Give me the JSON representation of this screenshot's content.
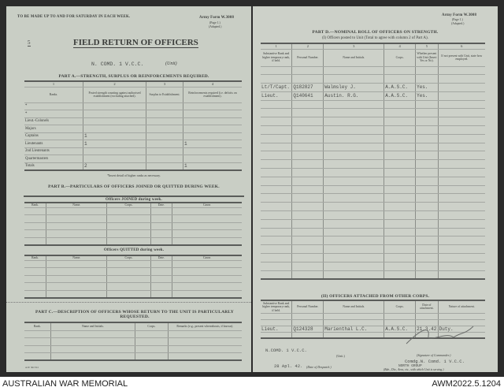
{
  "left": {
    "header_note": "TO BE MADE UP TO AND FOR SATURDAY IN EACH WEEK.",
    "form_no": "Army Form W.3008",
    "form_page": "(Page 1.)",
    "form_adapted": "(Adapted.)",
    "sheet_no": "5",
    "title": "FIELD RETURN OF OFFICERS",
    "unit_value": "N. COMD. 1 V.C.C.",
    "unit_label": "(Unit)",
    "part_a": {
      "heading": "PART A.—STRENGTH, SURPLUS OR REINFORCEMENTS REQUIRED.",
      "col_numbers": [
        "1",
        "2",
        "3",
        "4"
      ],
      "headers": [
        "Ranks.",
        "Posted strength counting against authorised establishment (excluding attached).",
        "Surplus to Establishment.",
        "Reinforcements required (i.e. deficits on establishment)."
      ],
      "rows": [
        [
          "*",
          "",
          "",
          ""
        ],
        [
          "*",
          "",
          "",
          ""
        ],
        [
          "Lieut.-Colonels",
          "",
          "",
          ""
        ],
        [
          "Majors",
          "",
          "",
          ""
        ],
        [
          "Captains",
          "1",
          "",
          ""
        ],
        [
          "Lieutenants",
          "1",
          "",
          "1"
        ],
        [
          "2nd Lieutenants",
          "",
          "",
          ""
        ],
        [
          "Quartermasters",
          "",
          "",
          ""
        ],
        [
          "Totals",
          "2",
          "",
          "1"
        ]
      ],
      "footnote": "*Insert detail of higher ranks as necessary."
    },
    "part_b": {
      "heading": "PART B.—PARTICULARS OF OFFICERS JOINED OR QUITTED DURING WEEK.",
      "joined_title": "Officers JOINED during week.",
      "quitted_title": "Officers QUITTED during week.",
      "headers": [
        "Rank.",
        "Name.",
        "Corps.",
        "Date.",
        "Cause."
      ]
    },
    "part_c": {
      "heading": "PART C.—DESCRIPTION OF OFFICERS WHOSE RETURN TO THE UNIT IS PARTICULARLY REQUESTED.",
      "headers": [
        "Rank.",
        "Name and Initials.",
        "Corps.",
        "Remarks (e.g., present whereabouts, if known)."
      ]
    },
    "print_code": "A.W. 3m 3/41"
  },
  "right": {
    "form_no": "Army Form W.3008",
    "form_page": "(Page 1.)",
    "form_adapted": "(Adapted.)",
    "part_d_heading": "PART D.—NOMINAL ROLL OF OFFICERS ON STRENGTH.",
    "section1_title": "(I) Officers posted to Unit (Total to agree with column 2 of Part A).",
    "col_numbers": [
      "1",
      "2",
      "3",
      "4",
      "5",
      "6"
    ],
    "headers1": [
      "Substantive Rank and higher temporary rank, if held.",
      "Personal Number.",
      "Name and Initials.",
      "Corps.",
      "Whether present with Unit (Insert Yes or No).",
      "If not present with Unit, state how employed."
    ],
    "rows1": [
      [
        "Lt/T/Capt.",
        "Q182827",
        "Walmsley J.",
        "A.A.S.C.",
        "Yes.",
        ""
      ],
      [
        "Lieut.",
        "Q140641",
        "Austin. R.G.",
        "A.A.S.C.",
        "Yes.",
        ""
      ]
    ],
    "section2_title": "(II) OFFICERS ATTACHED FROM OTHER CORPS.",
    "headers2": [
      "Substantive Rank and higher temporary rank, if held.",
      "Personal Number.",
      "Name and Initials.",
      "Corps.",
      "Date of attachment.",
      "Nature of attachment."
    ],
    "rows2": [
      [
        "Lieut.",
        "Q124328",
        "Marienthal L.C.",
        "A.A.S.C.",
        "21.3.42.",
        "Duty."
      ]
    ],
    "unit_value": "N.COMD. 1 V.C.C.",
    "unit_label": "(Unit.)",
    "date_value": "28 Apl. 42.",
    "date_label": "(Date of Despatch.)",
    "signature_label": "(Signature of Commander.)",
    "commander_value": "Comdg.N. Comd. 1 V.C.C.",
    "formation_value": "NORTH GROUP",
    "formation_label": "(Bde., Div., Area, etc., with which Unit is serving.)"
  },
  "caption": {
    "left": "AUSTRALIAN WAR MEMORIAL",
    "right": "AWM2022.5.1204"
  }
}
